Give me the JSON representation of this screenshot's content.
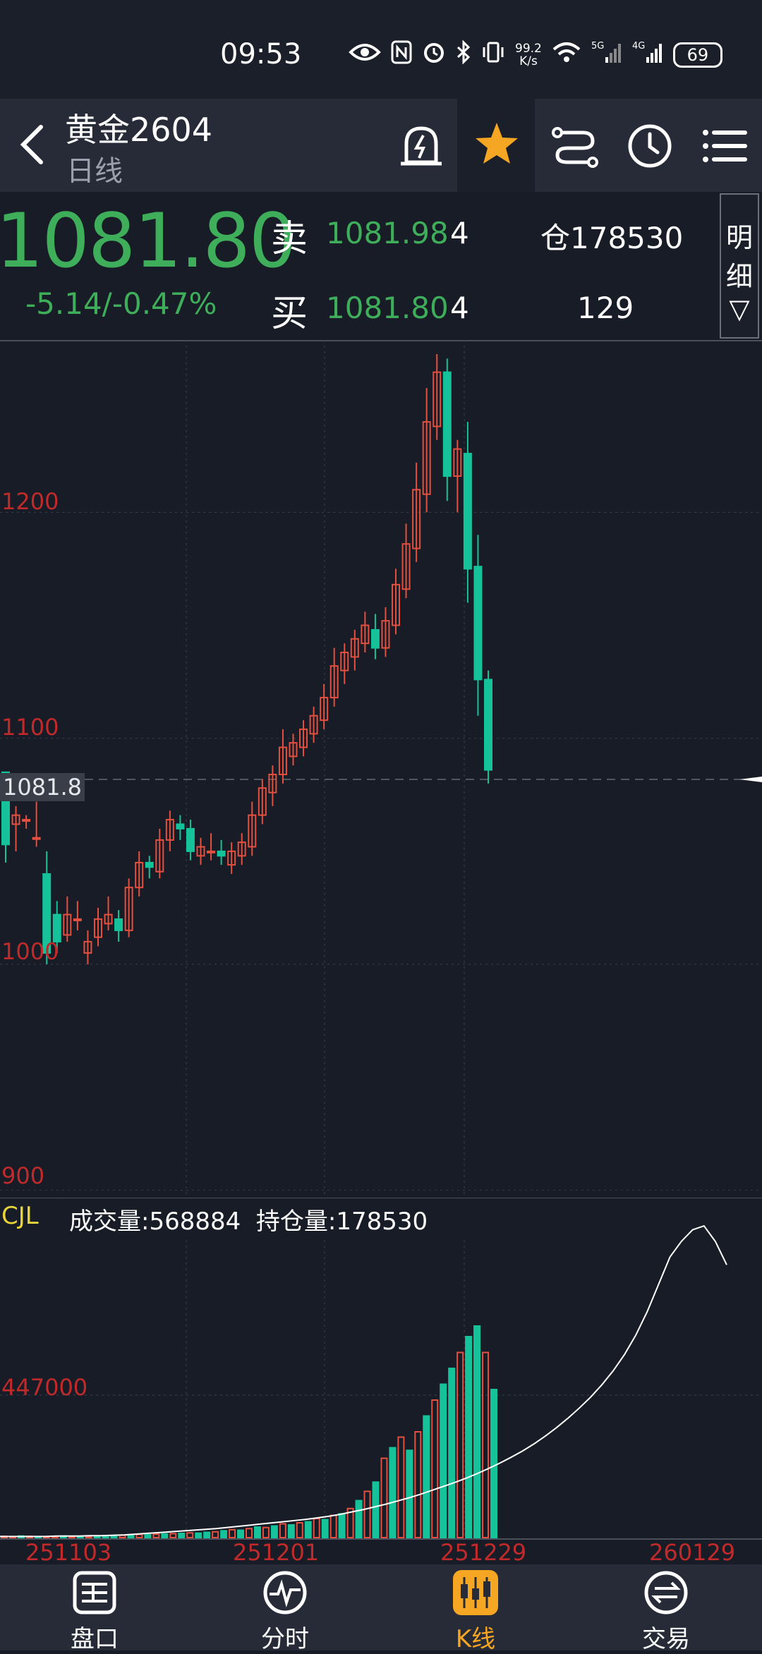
{
  "status": {
    "time": "09:53",
    "net_speed_value": "99.2",
    "net_speed_unit": "K/s",
    "battery": "69"
  },
  "header": {
    "title": "黄金2604",
    "subtitle": "日线"
  },
  "quote": {
    "last_price": "1081.80",
    "change": "-5.14/-0.47%",
    "sell_label": "卖",
    "sell_price": "1081.98",
    "sell_qty": "4",
    "buy_label": "买",
    "buy_price": "1081.80",
    "buy_qty": "4",
    "open_interest": "仓178530",
    "volume_delta": "129",
    "detail_label_1": "明",
    "detail_label_2": "细",
    "detail_arrow": "▽"
  },
  "colors": {
    "up": "#e4503f",
    "down": "#15c29a",
    "price_green": "#3fae5a",
    "axis_red": "#c02a2a",
    "accent": "#f5a623"
  },
  "price_axis": {
    "labels": [
      "1200",
      "1100",
      "1000",
      "900"
    ],
    "current_tag": "1081.8"
  },
  "volume_panel": {
    "indicator": "CJL",
    "volume_text": "成交量:568884",
    "oi_text": "持仓量:178530",
    "axis_label": "447000"
  },
  "dates": [
    "251103",
    "251201",
    "251229",
    "260129"
  ],
  "chart_data": {
    "type": "candlestick",
    "ylim": [
      898,
      1275
    ],
    "reference_price": 1081.8,
    "candles": [
      [
        1085,
        1053,
        1067,
        1045
      ],
      [
        1062,
        1066,
        1070,
        1050
      ],
      [
        1064,
        1064,
        1066,
        1060
      ],
      [
        1056,
        1056,
        1072,
        1052
      ],
      [
        1040,
        1005,
        1050,
        1000
      ],
      [
        1022,
        1010,
        1028,
        1005
      ],
      [
        1013,
        1022,
        1030,
        1010
      ],
      [
        1020,
        1020,
        1028,
        1015
      ],
      [
        1005,
        1010,
        1015,
        1000
      ],
      [
        1012,
        1020,
        1025,
        1008
      ],
      [
        1018,
        1022,
        1030,
        1015
      ],
      [
        1020,
        1015,
        1024,
        1010
      ],
      [
        1015,
        1034,
        1038,
        1012
      ],
      [
        1034,
        1045,
        1050,
        1030
      ],
      [
        1045,
        1043,
        1048,
        1038
      ],
      [
        1041,
        1055,
        1060,
        1038
      ],
      [
        1055,
        1064,
        1068,
        1050
      ],
      [
        1062,
        1060,
        1066,
        1055
      ],
      [
        1060,
        1050,
        1064,
        1046
      ],
      [
        1048,
        1052,
        1056,
        1044
      ],
      [
        1050,
        1050,
        1058,
        1046
      ],
      [
        1050,
        1048,
        1055,
        1044
      ],
      [
        1044,
        1050,
        1054,
        1040
      ],
      [
        1048,
        1054,
        1058,
        1044
      ],
      [
        1052,
        1066,
        1072,
        1048
      ],
      [
        1066,
        1078,
        1082,
        1062
      ],
      [
        1076,
        1084,
        1088,
        1070
      ],
      [
        1084,
        1096,
        1104,
        1080
      ],
      [
        1092,
        1098,
        1102,
        1088
      ],
      [
        1096,
        1104,
        1108,
        1092
      ],
      [
        1102,
        1110,
        1114,
        1098
      ],
      [
        1108,
        1118,
        1124,
        1104
      ],
      [
        1118,
        1132,
        1140,
        1114
      ],
      [
        1130,
        1138,
        1142,
        1124
      ],
      [
        1136,
        1144,
        1148,
        1130
      ],
      [
        1142,
        1150,
        1156,
        1138
      ],
      [
        1148,
        1140,
        1155,
        1135
      ],
      [
        1140,
        1152,
        1158,
        1136
      ],
      [
        1150,
        1168,
        1175,
        1146
      ],
      [
        1166,
        1186,
        1195,
        1162
      ],
      [
        1184,
        1210,
        1222,
        1178
      ],
      [
        1208,
        1240,
        1255,
        1200
      ],
      [
        1238,
        1262,
        1270,
        1232
      ],
      [
        1262,
        1216,
        1268,
        1205
      ],
      [
        1216,
        1228,
        1232,
        1200
      ],
      [
        1226,
        1175,
        1240,
        1160
      ],
      [
        1176,
        1126,
        1190,
        1110
      ],
      [
        1126,
        1086,
        1130,
        1080
      ]
    ],
    "volume": [
      [
        5,
        0
      ],
      [
        4,
        0
      ],
      [
        6,
        1
      ],
      [
        5,
        0
      ],
      [
        4,
        1
      ],
      [
        4,
        0
      ],
      [
        5,
        0
      ],
      [
        6,
        1
      ],
      [
        5,
        0
      ],
      [
        4,
        1
      ],
      [
        5,
        0
      ],
      [
        6,
        1
      ],
      [
        8,
        1
      ],
      [
        7,
        1
      ],
      [
        9,
        0
      ],
      [
        10,
        1
      ],
      [
        12,
        0
      ],
      [
        11,
        1
      ],
      [
        13,
        0
      ],
      [
        14,
        1
      ],
      [
        15,
        0
      ],
      [
        16,
        1
      ],
      [
        18,
        0
      ],
      [
        17,
        1
      ],
      [
        20,
        1
      ],
      [
        22,
        0
      ],
      [
        26,
        1
      ],
      [
        30,
        0
      ],
      [
        28,
        1
      ],
      [
        34,
        0
      ],
      [
        40,
        1
      ],
      [
        38,
        0
      ],
      [
        44,
        1
      ],
      [
        52,
        0
      ],
      [
        48,
        1
      ],
      [
        56,
        0
      ],
      [
        60,
        1
      ],
      [
        72,
        0
      ],
      [
        68,
        1
      ],
      [
        84,
        0
      ],
      [
        90,
        1
      ],
      [
        110,
        0
      ],
      [
        140,
        1
      ],
      [
        175,
        0
      ],
      [
        210,
        1
      ],
      [
        300,
        0
      ],
      [
        340,
        1
      ],
      [
        380,
        0
      ],
      [
        330,
        1
      ],
      [
        400,
        0
      ],
      [
        460,
        1
      ],
      [
        520,
        0
      ],
      [
        580,
        1
      ],
      [
        640,
        1
      ],
      [
        700,
        0
      ],
      [
        760,
        1
      ],
      [
        800,
        1
      ],
      [
        700,
        0
      ],
      [
        560,
        1
      ]
    ],
    "oi_line": [
      3,
      3,
      3,
      3,
      3,
      4,
      4,
      4,
      5,
      5,
      6,
      7,
      9,
      11,
      13,
      15,
      17,
      19,
      21,
      23,
      26,
      29,
      32,
      35,
      38,
      41,
      44,
      47,
      51,
      55,
      60,
      66,
      72,
      79,
      86,
      94,
      102,
      111,
      121,
      131,
      141,
      152,
      164,
      177,
      191,
      206,
      222,
      240,
      260,
      282,
      306,
      332,
      360,
      392,
      428,
      470,
      520,
      580,
      650,
      720,
      760,
      790,
      800,
      760,
      700
    ]
  }
}
